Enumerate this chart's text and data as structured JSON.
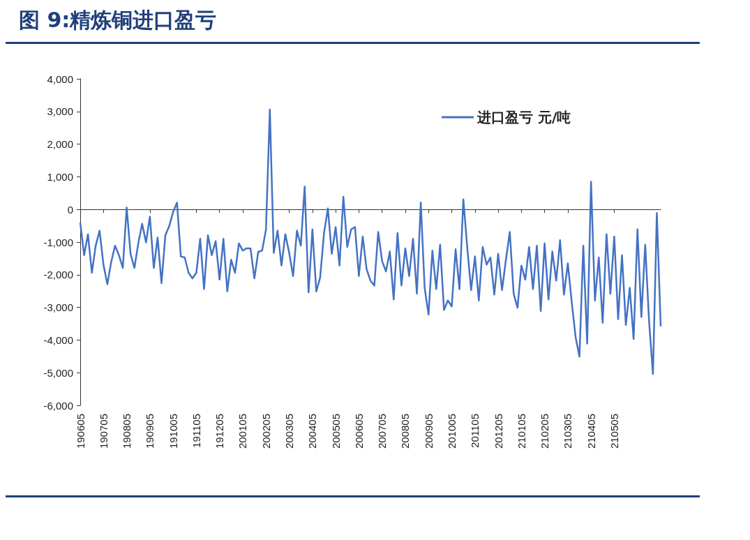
{
  "chart_data": {
    "type": "line",
    "title": "图 9:精炼铜进口盈亏",
    "categories": [
      "190605",
      null,
      null,
      null,
      null,
      null,
      "190705",
      null,
      null,
      null,
      null,
      null,
      "190805",
      null,
      null,
      null,
      null,
      null,
      "190905",
      null,
      null,
      null,
      null,
      null,
      "191005",
      null,
      null,
      null,
      null,
      null,
      "191105",
      null,
      null,
      null,
      null,
      null,
      "191205",
      null,
      null,
      null,
      null,
      null,
      "200105",
      null,
      null,
      null,
      null,
      null,
      "200205",
      null,
      null,
      null,
      null,
      null,
      "200305",
      null,
      null,
      null,
      null,
      null,
      "200405",
      null,
      null,
      null,
      null,
      null,
      "200505",
      null,
      null,
      null,
      null,
      null,
      "200605",
      null,
      null,
      null,
      null,
      null,
      "200705",
      null,
      null,
      null,
      null,
      null,
      "200805",
      null,
      null,
      null,
      null,
      null,
      "200905",
      null,
      null,
      null,
      null,
      null,
      "201005",
      null,
      null,
      null,
      null,
      null,
      "201105",
      null,
      null,
      null,
      null,
      null,
      "201205",
      null,
      null,
      null,
      null,
      null,
      "210105",
      null,
      null,
      null,
      null,
      null,
      "210205",
      null,
      null,
      null,
      null,
      null,
      "210305",
      null,
      null,
      null,
      null,
      null,
      "210405",
      null,
      null,
      null,
      null,
      null,
      "210505",
      null,
      null,
      null,
      null,
      null,
      null,
      null,
      null,
      null,
      null,
      null,
      null
    ],
    "series": [
      {
        "name": "进口盈亏 元/吨",
        "color": "#4472c4",
        "values": [
          -400,
          -1400,
          -760,
          -1940,
          -1110,
          -650,
          -1690,
          -2290,
          -1610,
          -1110,
          -1400,
          -1790,
          60,
          -1360,
          -1790,
          -1040,
          -440,
          -1010,
          -220,
          -1790,
          -860,
          -2260,
          -790,
          -510,
          -80,
          210,
          -1440,
          -1470,
          -1940,
          -2110,
          -1940,
          -900,
          -2440,
          -790,
          -1400,
          -970,
          -2150,
          -900,
          -2510,
          -1540,
          -1940,
          -1040,
          -1260,
          -1190,
          -1190,
          -2110,
          -1300,
          -1260,
          -610,
          3060,
          -1330,
          -650,
          -1720,
          -760,
          -1330,
          -2040,
          -650,
          -1110,
          700,
          -2540,
          -610,
          -2510,
          -2080,
          -720,
          30,
          -1360,
          -540,
          -1720,
          390,
          -1150,
          -610,
          -540,
          -2040,
          -830,
          -1830,
          -2180,
          -2330,
          -690,
          -1580,
          -1900,
          -1290,
          -2760,
          -720,
          -2330,
          -1190,
          -2040,
          -900,
          -2580,
          210,
          -2400,
          -3220,
          -1260,
          -2440,
          -1080,
          -3080,
          -2790,
          -2970,
          -1220,
          -2440,
          310,
          -1150,
          -2470,
          -1440,
          -2790,
          -1150,
          -1690,
          -1470,
          -2610,
          -1360,
          -2470,
          -1540,
          -690,
          -2580,
          -3010,
          -1720,
          -2150,
          -1150,
          -2440,
          -1110,
          -3110,
          -1040,
          -2760,
          -1290,
          -2180,
          -940,
          -2610,
          -1650,
          -2830,
          -3900,
          -4510,
          -1110,
          -4110,
          850,
          -2790,
          -1470,
          -3470,
          -760,
          -2580,
          -830,
          -3360,
          -1400,
          -3540,
          -2400,
          -3970,
          -610,
          -3290,
          -1080,
          -3440,
          -5040,
          -110,
          -3580
        ]
      }
    ],
    "ylim": [
      -6000,
      4000
    ],
    "yticks": [
      {
        "value": -6000,
        "label": "-6,000"
      },
      {
        "value": -5000,
        "label": "-5,000"
      },
      {
        "value": -4000,
        "label": "-4,000"
      },
      {
        "value": -3000,
        "label": "-3,000"
      },
      {
        "value": -2000,
        "label": "-2,000"
      },
      {
        "value": -1000,
        "label": "-1,000"
      },
      0,
      {
        "value": 1000,
        "label": "1,000"
      },
      {
        "value": 2000,
        "label": "2,000"
      },
      {
        "value": 3000,
        "label": "3,000"
      },
      {
        "value": 4000,
        "label": "4,000"
      }
    ],
    "legend": "top right"
  }
}
